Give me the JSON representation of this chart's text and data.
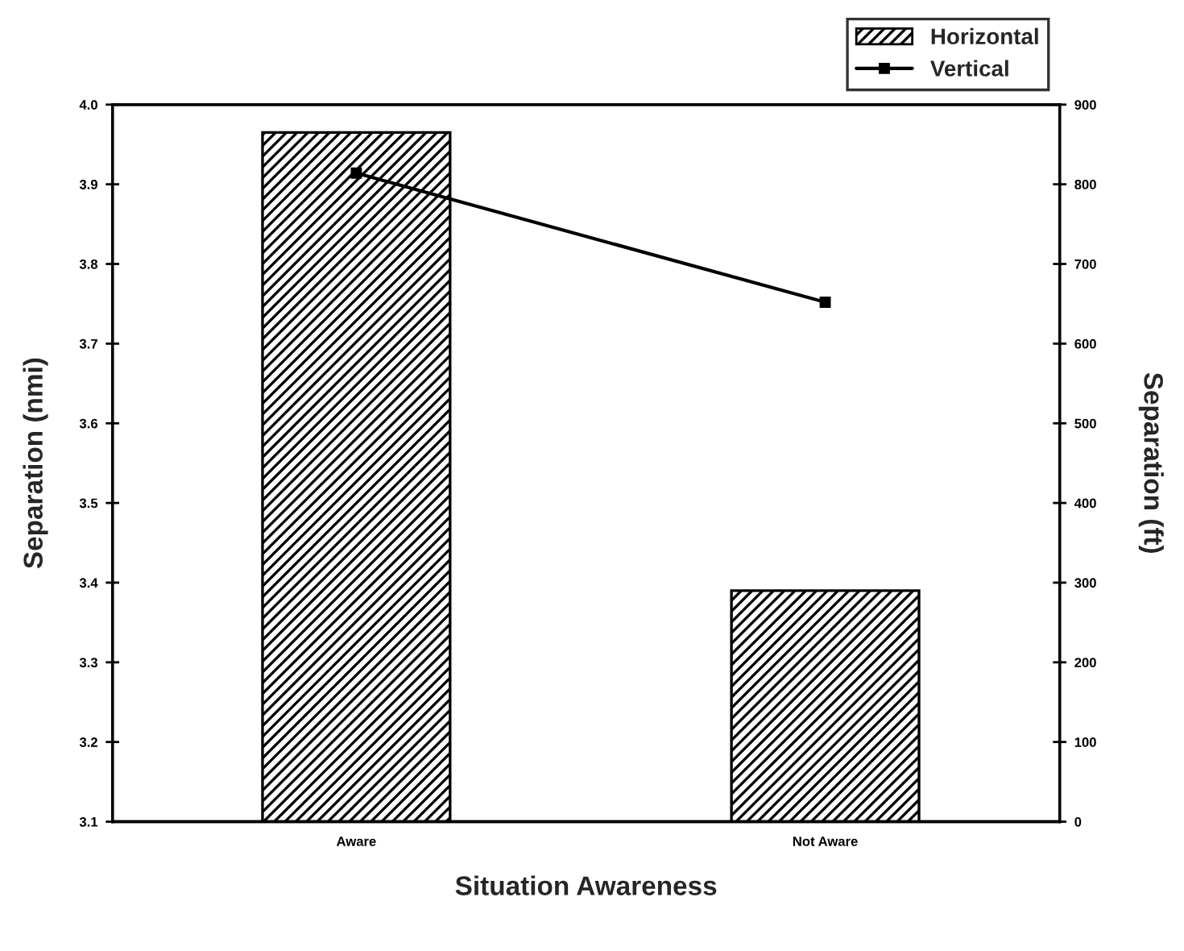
{
  "chart_data": {
    "type": "bar",
    "xlabel": "Situation Awareness",
    "ylabel": "Separation (nmi)",
    "y2label": "Separation (ft)",
    "categories": [
      "Aware",
      "Not Aware"
    ],
    "series": [
      {
        "name": "Horizontal",
        "color": "#000000",
        "values": [
          3.965,
          3.39
        ]
      },
      {
        "name": "Vertical",
        "type": "line",
        "axis": "y2",
        "color": "#000000",
        "marker": "square",
        "values": [
          814,
          652
        ]
      }
    ],
    "ylim": [
      3.1,
      4.0
    ],
    "yticks": [
      3.1,
      3.2,
      3.3,
      3.4,
      3.5,
      3.6,
      3.7,
      3.8,
      3.9,
      {
        "value": 4.0,
        "label": "4.0"
      }
    ],
    "y2lim": [
      0,
      900
    ],
    "y2ticks": [
      0,
      100,
      200,
      300,
      400,
      500,
      600,
      700,
      800,
      900
    ],
    "legend": "top right",
    "grid": false
  }
}
